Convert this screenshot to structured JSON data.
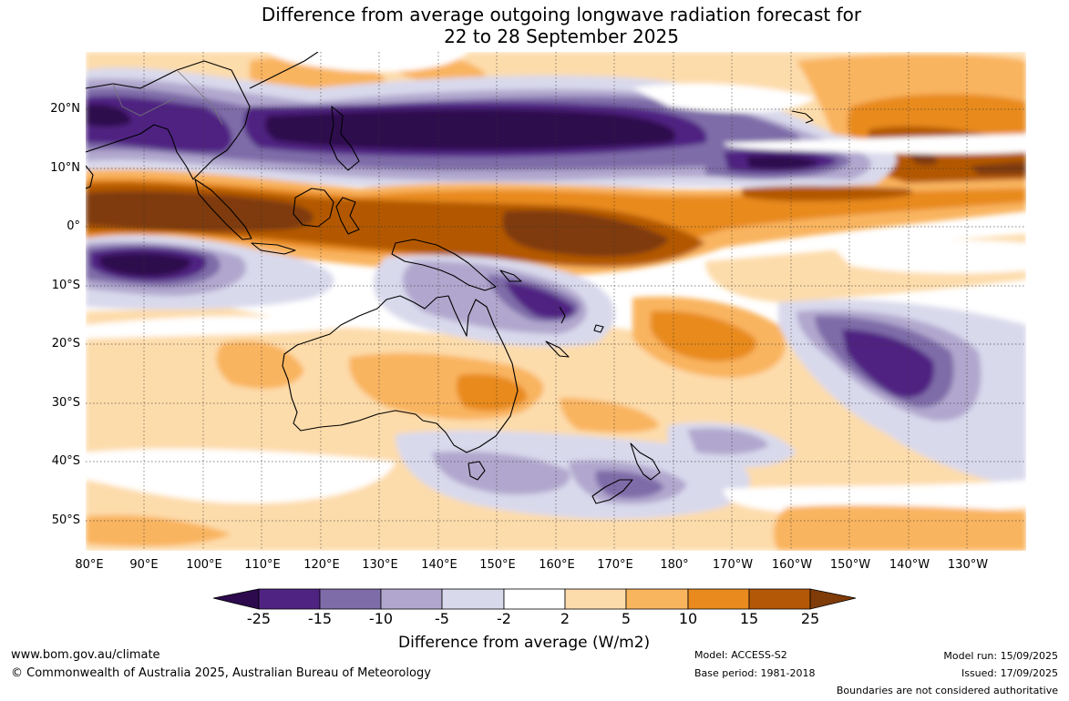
{
  "title": {
    "line1": "Difference from average outgoing longwave radiation forecast for",
    "line2": "22 to 28 September 2025"
  },
  "map": {
    "lat_labels": [
      "20°N",
      "10°N",
      "0°",
      "10°S",
      "20°S",
      "30°S",
      "40°S",
      "50°S"
    ],
    "lon_labels": [
      "80°E",
      "90°E",
      "100°E",
      "110°E",
      "120°E",
      "130°E",
      "140°E",
      "150°E",
      "160°E",
      "170°E",
      "180°",
      "170°W",
      "160°W",
      "150°W",
      "140°W",
      "130°W"
    ]
  },
  "legend": {
    "tick_labels": [
      "-25",
      "-15",
      "-10",
      "-5",
      "-2",
      "2",
      "5",
      "10",
      "15",
      "25"
    ],
    "title": "Difference from average (W/m2)",
    "colors": [
      "#2d0a4e",
      "#4f2382",
      "#7e6ca8",
      "#b1a7ce",
      "#d9d9ec",
      "#ffffff",
      "#fddcab",
      "#f9b45e",
      "#e88a1e",
      "#b35806",
      "#7f3b08"
    ]
  },
  "footer": {
    "website": "www.bom.gov.au/climate",
    "copyright": "© Commonwealth of Australia 2025, Australian Bureau of Meteorology",
    "model": "Model: ACCESS-S2",
    "base_period": "Base period: 1981-2018",
    "model_run": "Model run: 15/09/2025",
    "issued": "Issued: 17/09/2025",
    "disclaimer": "Boundaries are not considered authoritative"
  }
}
